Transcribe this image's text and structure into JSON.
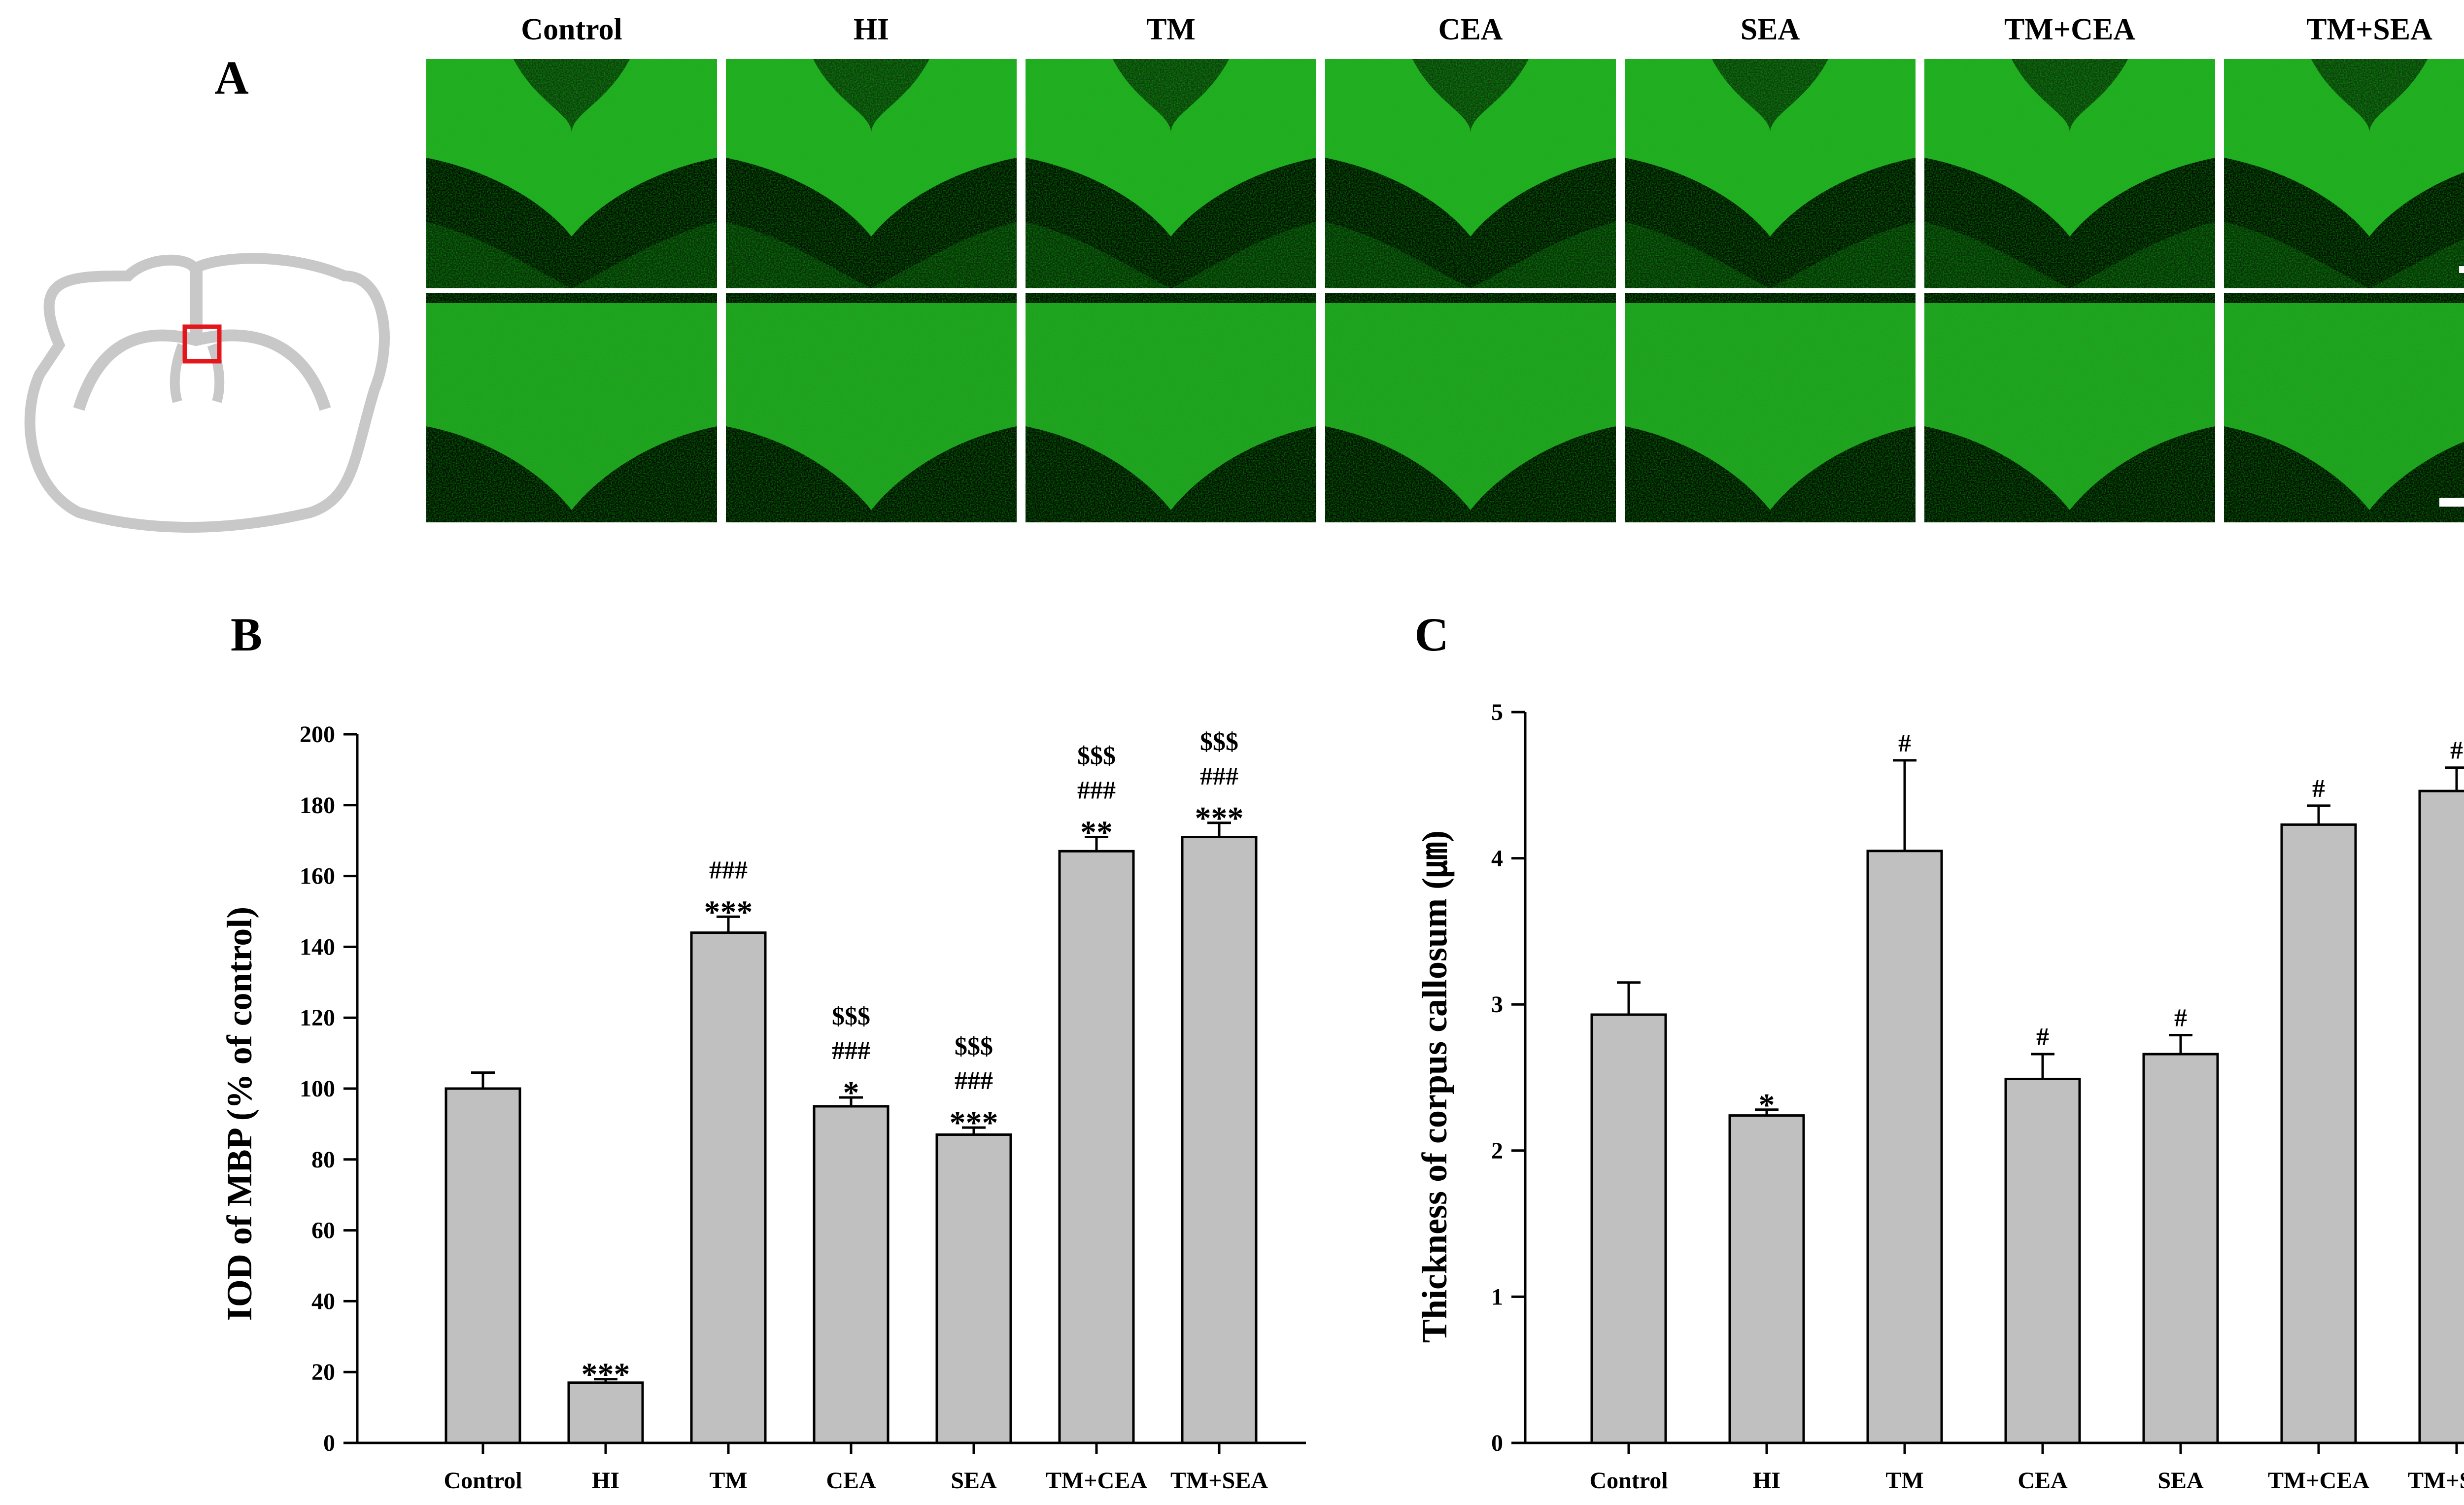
{
  "panel_a": {
    "letter": "A",
    "columns": [
      "Control",
      "HI",
      "TM",
      "CEA",
      "SEA",
      "TM+CEA",
      "TM+SEA"
    ],
    "image_color": "#33d633",
    "schematic_color": "#c8c8c8",
    "roi_color": "#e3161b"
  },
  "chart_data": [
    {
      "type": "bar",
      "letter": "B",
      "categories": [
        "Control",
        "HI",
        "TM",
        "CEA",
        "SEA",
        "TM+CEA",
        "TM+SEA"
      ],
      "values": [
        100,
        17,
        144,
        95,
        87,
        167,
        171
      ],
      "errors": [
        4.5,
        1,
        4.5,
        2.5,
        2,
        4,
        4
      ],
      "annotations": [
        [],
        [
          "***"
        ],
        [
          "###",
          "***"
        ],
        [
          "$$$",
          "###",
          "*"
        ],
        [
          "$$$",
          "###",
          "***"
        ],
        [
          "$$$",
          "###",
          "**"
        ],
        [
          "$$$",
          "###",
          "***"
        ]
      ],
      "ylabel": "IOD of MBP (% of control)",
      "ylim": [
        0,
        200
      ],
      "yticks": [
        0,
        20,
        40,
        60,
        80,
        100,
        120,
        140,
        160,
        180,
        200
      ],
      "bar_color": "#c0c0c0",
      "grid": false
    },
    {
      "type": "bar",
      "letter": "C",
      "categories": [
        "Control",
        "HI",
        "TM",
        "CEA",
        "SEA",
        "TM+CEA",
        "TM+SEA"
      ],
      "values": [
        2.93,
        2.24,
        4.05,
        2.49,
        2.66,
        4.23,
        4.46
      ],
      "errors": [
        0.22,
        0.04,
        0.62,
        0.17,
        0.13,
        0.13,
        0.16
      ],
      "annotations": [
        [],
        [
          "*"
        ],
        [
          "#"
        ],
        [
          "#"
        ],
        [
          "#"
        ],
        [
          "#"
        ],
        [
          "#"
        ]
      ],
      "ylabel": "Thickness of corpus callosum (㎛)",
      "ylim": [
        0,
        5
      ],
      "yticks": [
        0,
        1,
        2,
        3,
        4,
        5
      ],
      "bar_color": "#c0c0c0",
      "grid": false
    }
  ]
}
